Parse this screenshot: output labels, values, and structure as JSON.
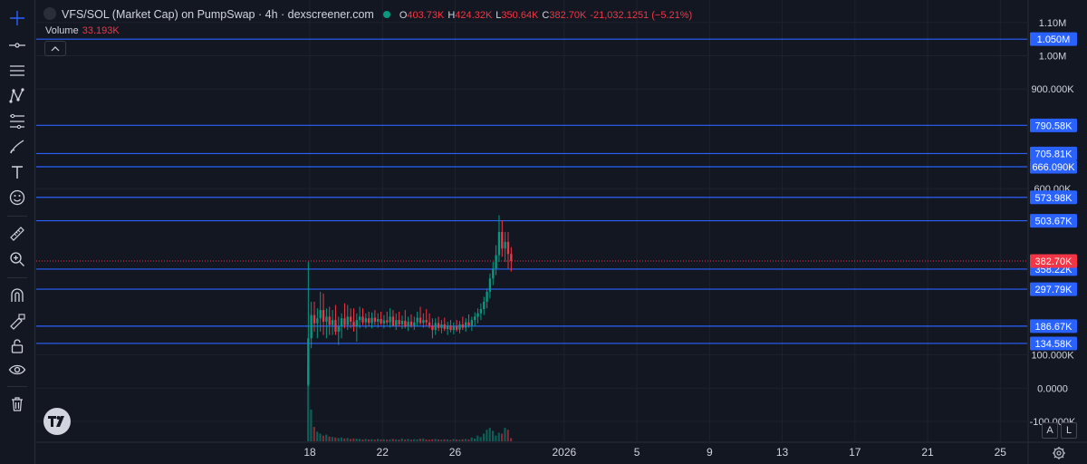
{
  "legend": {
    "symbol": "VFS/SOL (Market Cap) on PumpSwap · 4h · dexscreener.com",
    "o_label": "O",
    "o_value": "403.73K",
    "h_label": "H",
    "h_value": "424.32K",
    "l_label": "L",
    "l_value": "350.64K",
    "c_label": "C",
    "c_value": "382.70K",
    "change": "-21,032.1251 (−5.21%)"
  },
  "volume": {
    "label": "Volume",
    "value": "33.193K"
  },
  "toolbar": {
    "items": [
      "crosshair-icon",
      "horizontal-line-icon",
      "parallel-lines-icon",
      "pattern-icon",
      "fib-icon",
      "brush-icon",
      "text-icon",
      "emoji-icon",
      "ruler-icon",
      "zoom-in-icon",
      "magnet-icon",
      "lock-drawing-icon",
      "lock-icon",
      "eye-icon",
      "trash-icon"
    ]
  },
  "scale_buttons": {
    "auto": "A",
    "log": "L"
  },
  "colors": {
    "up": "#089981",
    "down": "#f23645",
    "line": "#2962ff",
    "background": "#131722",
    "grid": "#1e222d"
  },
  "chart_data": {
    "type": "candlestick",
    "title": "VFS/SOL (Market Cap) on PumpSwap · 4h · dexscreener.com",
    "timeframe": "4h",
    "y_ticks": [
      "1.10M",
      "1.00M",
      "900.000K",
      "600.00K",
      "100.000K",
      "0.0000",
      "-100.000K"
    ],
    "y_tick_values": [
      1100000,
      1000000,
      900000,
      600000,
      100000,
      0,
      -100000
    ],
    "x_ticks": [
      "18",
      "22",
      "26",
      "2026",
      "5",
      "9",
      "13",
      "17",
      "21",
      "25"
    ],
    "x_tick_dates": [
      "2025-12-18",
      "2025-12-22",
      "2025-12-26",
      "2026-01-01",
      "2026-01-05",
      "2026-01-09",
      "2026-01-13",
      "2026-01-17",
      "2026-01-21",
      "2026-01-25"
    ],
    "ylim": [
      -130000,
      1135000
    ],
    "horizontal_levels": [
      {
        "label": "1.050M",
        "value": 1050000
      },
      {
        "label": "790.58K",
        "value": 790580
      },
      {
        "label": "705.81K",
        "value": 705810
      },
      {
        "label": "666.090K",
        "value": 666090
      },
      {
        "label": "573.98K",
        "value": 573980
      },
      {
        "label": "503.67K",
        "value": 503670
      },
      {
        "label": "358.22K",
        "value": 358220
      },
      {
        "label": "297.79K",
        "value": 297790
      },
      {
        "label": "186.67K",
        "value": 186670
      },
      {
        "label": "134.58K",
        "value": 134580
      }
    ],
    "last_price": {
      "label": "382.70K",
      "value": 382700
    },
    "candle_start": "2025-12-17T20:00",
    "candles": [
      [
        10000,
        380000,
        5000,
        150000
      ],
      [
        150000,
        260000,
        120000,
        220000
      ],
      [
        220000,
        260000,
        170000,
        195000
      ],
      [
        195000,
        240000,
        150000,
        210000
      ],
      [
        210000,
        290000,
        170000,
        235000
      ],
      [
        235000,
        285000,
        160000,
        200000
      ],
      [
        200000,
        240000,
        150000,
        215000
      ],
      [
        215000,
        245000,
        160000,
        190000
      ],
      [
        190000,
        235000,
        160000,
        205000
      ],
      [
        205000,
        250000,
        160000,
        170000
      ],
      [
        170000,
        215000,
        130000,
        185000
      ],
      [
        185000,
        225000,
        150000,
        210000
      ],
      [
        210000,
        255000,
        180000,
        190000
      ],
      [
        190000,
        250000,
        175000,
        215000
      ],
      [
        215000,
        240000,
        180000,
        200000
      ],
      [
        200000,
        240000,
        170000,
        185000
      ],
      [
        185000,
        225000,
        140000,
        205000
      ],
      [
        205000,
        245000,
        180000,
        215000
      ],
      [
        215000,
        240000,
        190000,
        198000
      ],
      [
        198000,
        225000,
        180000,
        210000
      ],
      [
        210000,
        230000,
        185000,
        196000
      ],
      [
        196000,
        228000,
        180000,
        212000
      ],
      [
        212000,
        235000,
        190000,
        200000
      ],
      [
        200000,
        225000,
        182000,
        208000
      ],
      [
        208000,
        230000,
        190000,
        195000
      ],
      [
        195000,
        220000,
        180000,
        204000
      ],
      [
        204000,
        230000,
        190000,
        198000
      ],
      [
        198000,
        240000,
        182000,
        215000
      ],
      [
        215000,
        235000,
        185000,
        188000
      ],
      [
        188000,
        225000,
        175000,
        205000
      ],
      [
        205000,
        230000,
        185000,
        192000
      ],
      [
        192000,
        218000,
        178000,
        203000
      ],
      [
        203000,
        235000,
        180000,
        185000
      ],
      [
        185000,
        215000,
        172000,
        200000
      ],
      [
        200000,
        222000,
        182000,
        188000
      ],
      [
        188000,
        215000,
        175000,
        198000
      ],
      [
        198000,
        230000,
        185000,
        212000
      ],
      [
        212000,
        245000,
        190000,
        196000
      ],
      [
        196000,
        225000,
        182000,
        205000
      ],
      [
        205000,
        238000,
        188000,
        198000
      ],
      [
        198000,
        225000,
        180000,
        188000
      ],
      [
        188000,
        210000,
        150000,
        175000
      ],
      [
        175000,
        210000,
        160000,
        196000
      ],
      [
        196000,
        215000,
        172000,
        181000
      ],
      [
        181000,
        205000,
        165000,
        192000
      ],
      [
        192000,
        212000,
        172000,
        178000
      ],
      [
        178000,
        200000,
        160000,
        188000
      ],
      [
        188000,
        205000,
        168000,
        175000
      ],
      [
        175000,
        198000,
        162000,
        185000
      ],
      [
        185000,
        205000,
        170000,
        176000
      ],
      [
        176000,
        202000,
        165000,
        192000
      ],
      [
        192000,
        215000,
        175000,
        182000
      ],
      [
        182000,
        210000,
        170000,
        198000
      ],
      [
        198000,
        222000,
        182000,
        188000
      ],
      [
        188000,
        215000,
        172000,
        205000
      ],
      [
        205000,
        228000,
        185000,
        215000
      ],
      [
        215000,
        240000,
        195000,
        225000
      ],
      [
        225000,
        255000,
        205000,
        238000
      ],
      [
        238000,
        275000,
        220000,
        260000
      ],
      [
        260000,
        300000,
        240000,
        290000
      ],
      [
        290000,
        345000,
        270000,
        330000
      ],
      [
        330000,
        380000,
        310000,
        360000
      ],
      [
        360000,
        430000,
        340000,
        400000
      ],
      [
        400000,
        520000,
        380000,
        470000
      ],
      [
        470000,
        505000,
        395000,
        420000
      ],
      [
        420000,
        470000,
        380000,
        440000
      ],
      [
        440000,
        470000,
        360000,
        403730
      ],
      [
        403730,
        424320,
        350640,
        382700
      ]
    ],
    "volumes": [
      800000,
      330000,
      150000,
      100000,
      80000,
      60000,
      70000,
      50000,
      45000,
      40000,
      35000,
      40000,
      30000,
      35000,
      25000,
      30000,
      28000,
      25000,
      20000,
      25000,
      20000,
      22000,
      18000,
      25000,
      20000,
      22000,
      18000,
      20000,
      25000,
      20000,
      18000,
      30000,
      20000,
      25000,
      18000,
      22000,
      20000,
      28000,
      30000,
      20000,
      18000,
      22000,
      25000,
      20000,
      18000,
      22000,
      20000,
      15000,
      25000,
      20000,
      18000,
      22000,
      25000,
      20000,
      40000,
      30000,
      60000,
      45000,
      80000,
      120000,
      140000,
      110000,
      60000,
      90000,
      80000,
      140000,
      120000,
      33193
    ]
  }
}
